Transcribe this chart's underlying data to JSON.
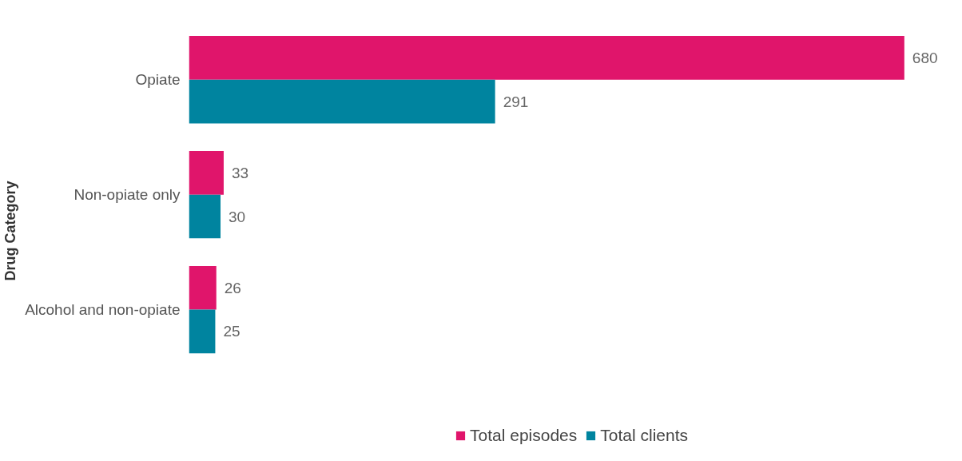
{
  "chart_data": {
    "type": "bar",
    "orientation": "horizontal",
    "ylabel": "Drug Category",
    "categories": [
      "Opiate",
      "Non-opiate only",
      "Alcohol and non-opiate"
    ],
    "series": [
      {
        "name": "Total episodes",
        "color": "#e0156b",
        "values": [
          680,
          33,
          26
        ]
      },
      {
        "name": "Total clients",
        "color": "#00849f",
        "values": [
          291,
          30,
          25
        ]
      }
    ],
    "data_labels": true,
    "legend": "bottom",
    "grid": false,
    "tick_labels": "y"
  }
}
